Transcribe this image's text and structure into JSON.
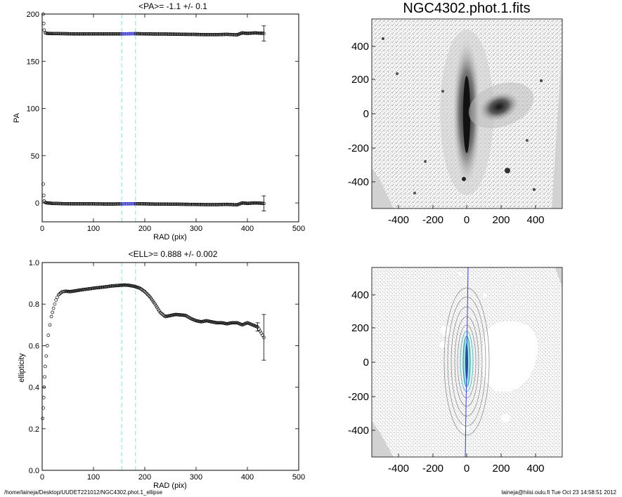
{
  "footer": {
    "path": "/home/laineja/Desktop/UUDET221012/NGC4302.phot.1_ellipse",
    "user_time": "laineja@hiisi.oulu.fi  Tue Oct 23 14:58:51 2012"
  },
  "colors": {
    "markers": "#000000",
    "guide_lines": "#7fe0ea",
    "highlight": "#2a2ad0",
    "axis_line": "#3a3ae0"
  },
  "images": {
    "top_title": "NGC4302.phot.1.fits",
    "x_ticks": [
      "-400",
      "-200",
      "0",
      "200",
      "400"
    ],
    "y_ticks": [
      "400",
      "200",
      "0",
      "-200",
      "-400"
    ]
  },
  "chart_data": [
    {
      "type": "scatter",
      "title": "<PA>=  -1.1 +/-   0.1",
      "xlabel": "RAD (pix)",
      "ylabel": "PA",
      "xlim": [
        0,
        500
      ],
      "ylim": [
        -20,
        200
      ],
      "x_ticks": [
        0,
        100,
        200,
        300,
        400,
        500
      ],
      "y_ticks": [
        0,
        50,
        100,
        150,
        200
      ],
      "guide_lines_x": [
        155,
        182
      ],
      "grid": false,
      "series": [
        {
          "values": [
            [
              2,
              20
            ],
            [
              3,
              8
            ],
            [
              4,
              2
            ],
            [
              6,
              0.5
            ],
            [
              10,
              0
            ],
            [
              20,
              -0.5
            ],
            [
              40,
              -0.8
            ],
            [
              60,
              -1
            ],
            [
              80,
              -1
            ],
            [
              100,
              -1
            ],
            [
              120,
              -1.1
            ],
            [
              140,
              -1.1
            ],
            [
              160,
              -1
            ],
            [
              180,
              -0.8
            ],
            [
              200,
              -1
            ],
            [
              220,
              -1.2
            ],
            [
              240,
              -1.2
            ],
            [
              260,
              -1.3
            ],
            [
              280,
              -1.5
            ],
            [
              300,
              -1.6
            ],
            [
              320,
              -1.8
            ],
            [
              340,
              -1.8
            ],
            [
              360,
              -1.5
            ],
            [
              380,
              -2
            ],
            [
              390,
              0
            ],
            [
              400,
              -0.5
            ],
            [
              415,
              0
            ],
            [
              432,
              -0.5
            ]
          ]
        },
        {
          "values": [
            [
              2,
              200
            ],
            [
              3,
              190
            ],
            [
              4,
              183
            ],
            [
              6,
              180
            ],
            [
              10,
              179.5
            ],
            [
              20,
              179.3
            ],
            [
              40,
              179.2
            ],
            [
              60,
              179
            ],
            [
              80,
              179
            ],
            [
              100,
              179
            ],
            [
              120,
              179
            ],
            [
              140,
              179
            ],
            [
              160,
              179
            ],
            [
              180,
              179.2
            ],
            [
              200,
              179
            ],
            [
              220,
              178.8
            ],
            [
              240,
              178.8
            ],
            [
              260,
              178.7
            ],
            [
              280,
              178.5
            ],
            [
              300,
              178.4
            ],
            [
              320,
              178.2
            ],
            [
              340,
              178.2
            ],
            [
              360,
              178.5
            ],
            [
              380,
              178
            ],
            [
              390,
              180
            ],
            [
              400,
              179.5
            ],
            [
              415,
              180
            ],
            [
              432,
              179.5
            ]
          ]
        }
      ],
      "error_bars": [
        [
          432,
          -0.5,
          8
        ],
        [
          432,
          179.5,
          8
        ]
      ]
    },
    {
      "type": "scatter",
      "title": "<ELL>= 0.888 +/-  0.002",
      "xlabel": "RAD (pix)",
      "ylabel": "ellipticity",
      "xlim": [
        0,
        500
      ],
      "ylim": [
        0,
        1
      ],
      "x_ticks": [
        0,
        100,
        200,
        300,
        400,
        500
      ],
      "y_ticks": [
        0.0,
        0.2,
        0.4,
        0.6,
        0.8,
        1.0
      ],
      "y_tick_labels": [
        "0.0",
        "0.2",
        "0.4",
        "0.6",
        "0.8",
        "1.0"
      ],
      "guide_lines_x": [
        155,
        182
      ],
      "grid": false,
      "series": [
        {
          "values": [
            [
              1,
              0.25
            ],
            [
              2,
              0.3
            ],
            [
              3,
              0.35
            ],
            [
              4,
              0.4
            ],
            [
              5,
              0.45
            ],
            [
              6,
              0.5
            ],
            [
              8,
              0.55
            ],
            [
              10,
              0.6
            ],
            [
              12,
              0.65
            ],
            [
              15,
              0.7
            ],
            [
              18,
              0.74
            ],
            [
              22,
              0.78
            ],
            [
              27,
              0.82
            ],
            [
              32,
              0.845
            ],
            [
              38,
              0.858
            ],
            [
              45,
              0.862
            ],
            [
              55,
              0.86
            ],
            [
              65,
              0.864
            ],
            [
              75,
              0.868
            ],
            [
              90,
              0.873
            ],
            [
              105,
              0.878
            ],
            [
              120,
              0.882
            ],
            [
              135,
              0.887
            ],
            [
              150,
              0.89
            ],
            [
              160,
              0.892
            ],
            [
              170,
              0.89
            ],
            [
              180,
              0.885
            ],
            [
              190,
              0.877
            ],
            [
              200,
              0.86
            ],
            [
              210,
              0.835
            ],
            [
              220,
              0.8
            ],
            [
              230,
              0.76
            ],
            [
              240,
              0.74
            ],
            [
              250,
              0.745
            ],
            [
              260,
              0.75
            ],
            [
              270,
              0.748
            ],
            [
              280,
              0.745
            ],
            [
              290,
              0.73
            ],
            [
              300,
              0.72
            ],
            [
              310,
              0.715
            ],
            [
              320,
              0.72
            ],
            [
              330,
              0.715
            ],
            [
              340,
              0.71
            ],
            [
              350,
              0.71
            ],
            [
              360,
              0.705
            ],
            [
              370,
              0.71
            ],
            [
              380,
              0.71
            ],
            [
              390,
              0.7
            ],
            [
              400,
              0.71
            ],
            [
              410,
              0.7
            ],
            [
              420,
              0.69
            ],
            [
              432,
              0.64
            ]
          ]
        }
      ],
      "error_bars": [
        [
          420,
          0.69,
          0.02
        ],
        [
          432,
          0.64,
          0.11
        ]
      ]
    }
  ]
}
